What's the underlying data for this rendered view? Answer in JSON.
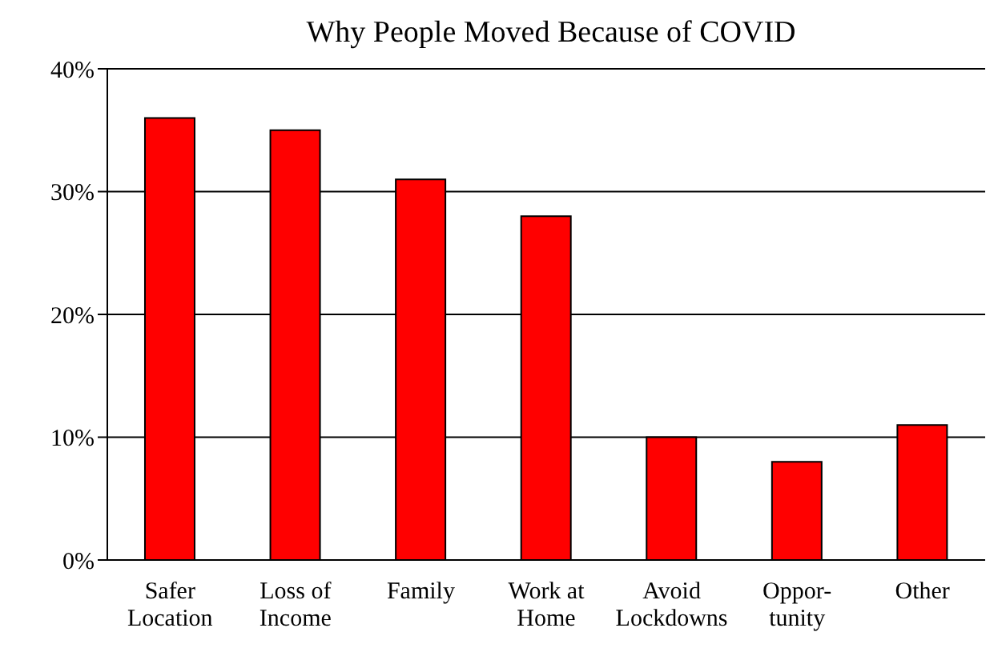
{
  "chart_data": {
    "type": "bar",
    "title": "Why People Moved Because of COVID",
    "categories": [
      "Safer\nLocation",
      "Loss of\nIncome",
      "Family",
      "Work at\nHome",
      "Avoid\nLockdowns",
      "Oppor-\ntunity",
      "Other"
    ],
    "values": [
      36,
      35,
      31,
      28,
      10,
      8,
      11
    ],
    "color": "#ff0000",
    "ylim": [
      0,
      40
    ],
    "yticks": [
      {
        "value": 0,
        "label": "0%"
      },
      {
        "value": 10,
        "label": "10%"
      },
      {
        "value": 20,
        "label": "20%"
      },
      {
        "value": 30,
        "label": "30%"
      },
      {
        "value": 40,
        "label": "40%"
      }
    ],
    "grid": "y",
    "legend": false
  }
}
